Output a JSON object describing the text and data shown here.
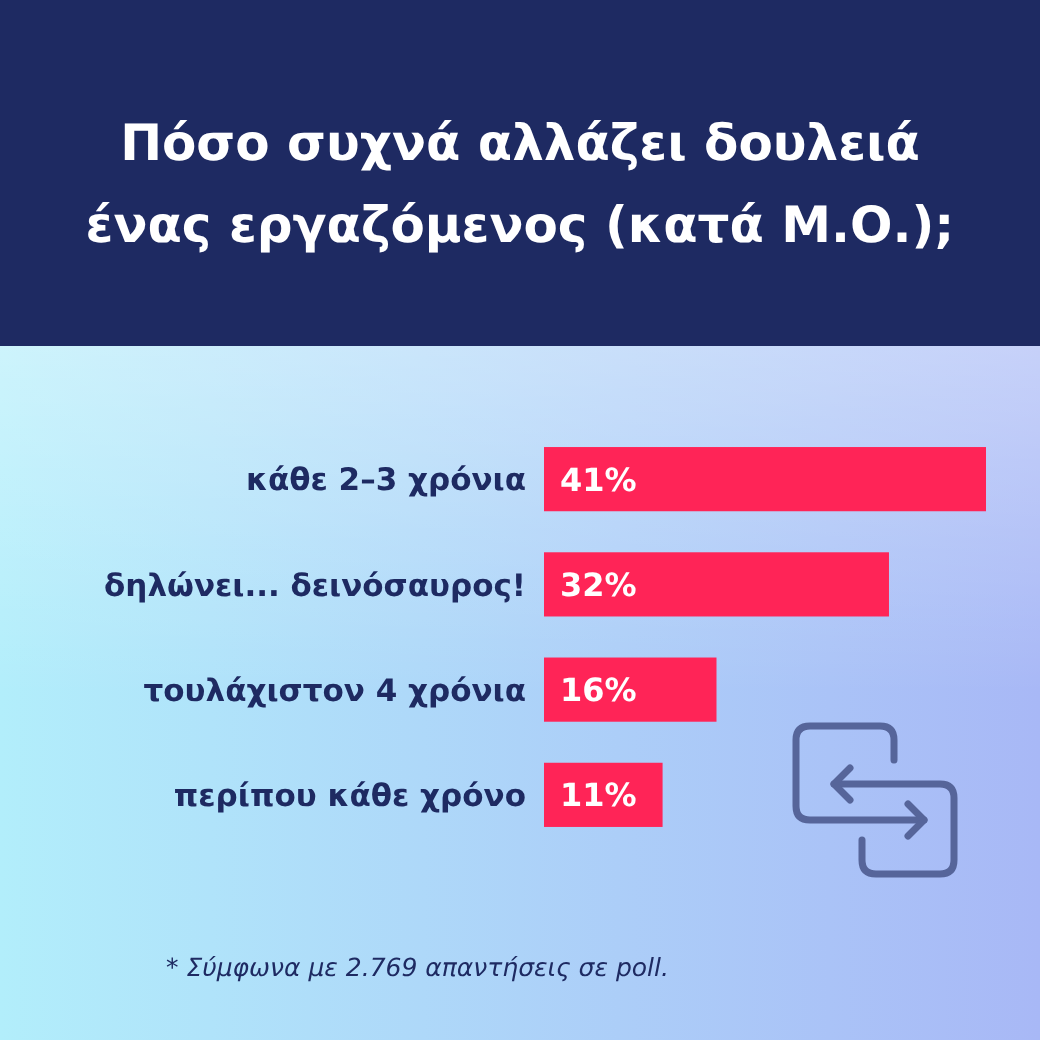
{
  "chart_data": {
    "type": "bar",
    "orientation": "horizontal",
    "title": "Πόσο συχνά αλλάζει δουλειά ένας εργαζόμενος (κατά Μ.Ο.);",
    "categories": [
      "κάθε 2–3 χρόνια",
      "δηλώνει... δεινόσαυρος!",
      "τουλάχιστον 4 χρόνια",
      "περίπου κάθε χρόνο"
    ],
    "values": [
      41,
      32,
      16,
      11
    ],
    "value_labels": [
      "41%",
      "32%",
      "16%",
      "11%"
    ],
    "color": "#ff2457",
    "tick_labels": "y",
    "annotations": [
      "* Σύμφωνα με 2.769 απαντήσεις σε poll."
    ]
  }
}
